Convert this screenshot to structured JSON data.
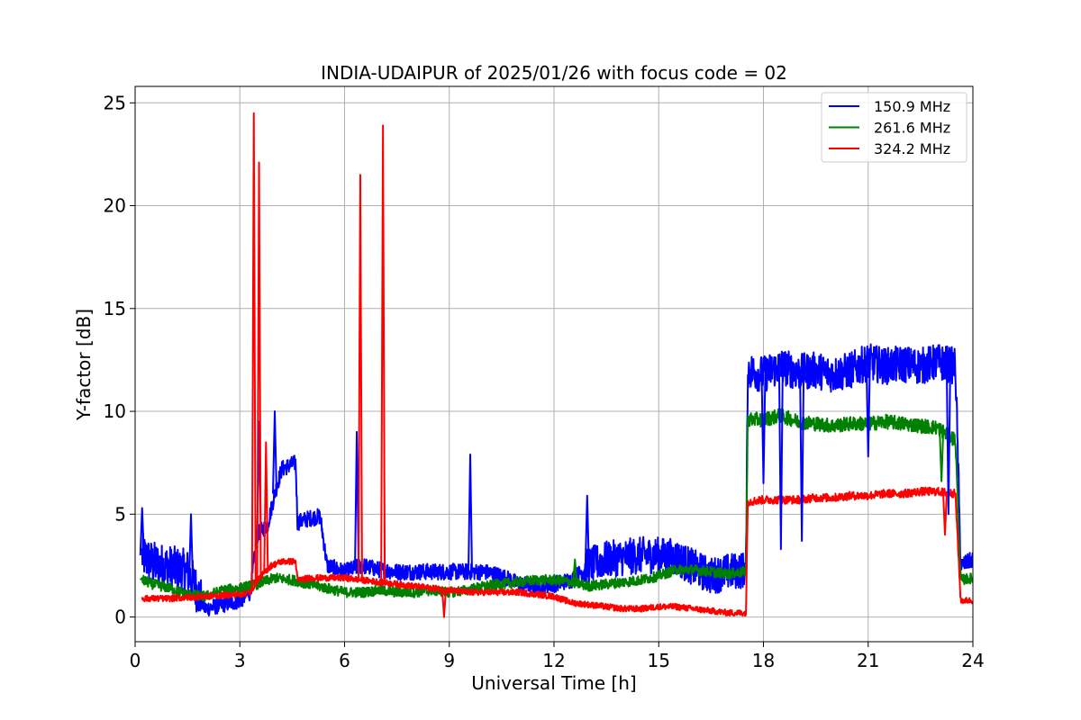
{
  "chart_data": {
    "type": "line",
    "title": "INDIA-UDAIPUR of 2025/01/26 with focus code = 02",
    "xlabel": "Universal Time [h]",
    "ylabel": "Y-factor [dB]",
    "xlim": [
      0,
      24
    ],
    "ylim": [
      -1.2,
      25.8
    ],
    "xticks": [
      0,
      3,
      6,
      9,
      12,
      15,
      18,
      21,
      24
    ],
    "yticks": [
      0,
      5,
      10,
      15,
      20,
      25
    ],
    "grid": true,
    "legend_position": "top-right",
    "series": [
      {
        "name": "150.9 MHz",
        "color": "#0000ff",
        "points": [
          [
            0.2,
            3.0
          ],
          [
            0.5,
            2.6
          ],
          [
            1.0,
            2.4
          ],
          [
            1.5,
            2.2
          ],
          [
            1.8,
            1.2
          ],
          [
            2.0,
            0.4
          ],
          [
            2.5,
            0.6
          ],
          [
            3.0,
            0.8
          ],
          [
            3.3,
            1.2
          ],
          [
            3.5,
            4.0
          ],
          [
            3.8,
            4.5
          ],
          [
            4.0,
            6.0
          ],
          [
            4.2,
            7.2
          ],
          [
            4.6,
            7.5
          ],
          [
            4.65,
            4.6
          ],
          [
            5.0,
            4.8
          ],
          [
            5.3,
            4.9
          ],
          [
            5.5,
            2.5
          ],
          [
            6.0,
            2.2
          ],
          [
            6.5,
            2.5
          ],
          [
            7.0,
            2.3
          ],
          [
            7.5,
            2.2
          ],
          [
            8.0,
            2.2
          ],
          [
            8.5,
            2.2
          ],
          [
            9.0,
            2.2
          ],
          [
            9.5,
            2.2
          ],
          [
            10.0,
            2.2
          ],
          [
            10.5,
            2.0
          ],
          [
            11.0,
            1.6
          ],
          [
            11.5,
            1.5
          ],
          [
            12.0,
            1.6
          ],
          [
            12.5,
            1.8
          ],
          [
            13.0,
            2.5
          ],
          [
            13.5,
            2.8
          ],
          [
            14.0,
            2.9
          ],
          [
            14.5,
            3.0
          ],
          [
            15.0,
            3.0
          ],
          [
            15.5,
            2.9
          ],
          [
            16.0,
            2.4
          ],
          [
            16.5,
            2.0
          ],
          [
            17.0,
            2.2
          ],
          [
            17.5,
            2.3
          ],
          [
            17.55,
            12.0
          ],
          [
            18.0,
            11.8
          ],
          [
            18.5,
            12.2
          ],
          [
            19.0,
            11.9
          ],
          [
            19.5,
            12.0
          ],
          [
            20.0,
            11.8
          ],
          [
            20.5,
            12.0
          ],
          [
            21.0,
            12.4
          ],
          [
            21.5,
            12.2
          ],
          [
            22.0,
            12.3
          ],
          [
            22.5,
            12.2
          ],
          [
            23.0,
            12.4
          ],
          [
            23.5,
            12.2
          ],
          [
            23.65,
            2.5
          ],
          [
            24.0,
            2.8
          ]
        ]
      },
      {
        "name": "261.6 MHz",
        "color": "#008000",
        "points": [
          [
            0.2,
            1.8
          ],
          [
            0.5,
            1.6
          ],
          [
            1.0,
            1.4
          ],
          [
            1.5,
            1.1
          ],
          [
            2.0,
            1.0
          ],
          [
            2.5,
            1.3
          ],
          [
            3.0,
            1.4
          ],
          [
            3.5,
            1.6
          ],
          [
            4.0,
            1.9
          ],
          [
            4.5,
            1.8
          ],
          [
            5.0,
            1.6
          ],
          [
            5.5,
            1.4
          ],
          [
            6.0,
            1.2
          ],
          [
            6.5,
            1.2
          ],
          [
            7.0,
            1.3
          ],
          [
            7.5,
            1.2
          ],
          [
            8.0,
            1.2
          ],
          [
            8.5,
            1.3
          ],
          [
            9.0,
            1.2
          ],
          [
            9.5,
            1.3
          ],
          [
            10.0,
            1.5
          ],
          [
            10.5,
            1.6
          ],
          [
            11.0,
            1.7
          ],
          [
            11.5,
            1.8
          ],
          [
            12.0,
            1.8
          ],
          [
            12.5,
            1.7
          ],
          [
            13.0,
            1.5
          ],
          [
            13.5,
            1.6
          ],
          [
            14.0,
            1.7
          ],
          [
            14.5,
            1.8
          ],
          [
            15.0,
            2.0
          ],
          [
            15.5,
            2.3
          ],
          [
            16.0,
            2.3
          ],
          [
            16.5,
            2.2
          ],
          [
            17.0,
            2.1
          ],
          [
            17.5,
            2.2
          ],
          [
            17.55,
            9.6
          ],
          [
            18.0,
            9.6
          ],
          [
            18.5,
            9.8
          ],
          [
            19.0,
            9.5
          ],
          [
            19.5,
            9.4
          ],
          [
            20.0,
            9.3
          ],
          [
            20.5,
            9.4
          ],
          [
            21.0,
            9.4
          ],
          [
            21.5,
            9.5
          ],
          [
            22.0,
            9.4
          ],
          [
            22.5,
            9.3
          ],
          [
            23.0,
            9.2
          ],
          [
            23.5,
            8.6
          ],
          [
            23.65,
            1.8
          ],
          [
            24.0,
            1.9
          ]
        ]
      },
      {
        "name": "324.2 MHz",
        "color": "#ff0000",
        "points": [
          [
            0.2,
            0.9
          ],
          [
            1.0,
            0.9
          ],
          [
            2.0,
            1.0
          ],
          [
            3.0,
            1.1
          ],
          [
            3.3,
            1.2
          ],
          [
            3.5,
            1.8
          ],
          [
            3.9,
            2.5
          ],
          [
            4.2,
            2.7
          ],
          [
            4.6,
            2.7
          ],
          [
            4.65,
            1.8
          ],
          [
            5.0,
            1.9
          ],
          [
            5.5,
            1.9
          ],
          [
            6.0,
            1.9
          ],
          [
            6.5,
            1.8
          ],
          [
            7.0,
            1.7
          ],
          [
            7.5,
            1.6
          ],
          [
            8.0,
            1.5
          ],
          [
            8.5,
            1.4
          ],
          [
            9.0,
            1.3
          ],
          [
            9.5,
            1.2
          ],
          [
            10.0,
            1.2
          ],
          [
            10.5,
            1.2
          ],
          [
            11.0,
            1.2
          ],
          [
            11.5,
            1.1
          ],
          [
            12.0,
            1.0
          ],
          [
            12.5,
            0.7
          ],
          [
            13.0,
            0.6
          ],
          [
            13.5,
            0.5
          ],
          [
            14.0,
            0.4
          ],
          [
            14.5,
            0.4
          ],
          [
            15.0,
            0.5
          ],
          [
            15.5,
            0.5
          ],
          [
            16.0,
            0.4
          ],
          [
            16.5,
            0.3
          ],
          [
            17.0,
            0.2
          ],
          [
            17.5,
            0.2
          ],
          [
            17.55,
            5.6
          ],
          [
            18.0,
            5.7
          ],
          [
            18.5,
            5.7
          ],
          [
            19.0,
            5.7
          ],
          [
            19.5,
            5.8
          ],
          [
            20.0,
            5.8
          ],
          [
            20.5,
            5.9
          ],
          [
            21.0,
            5.9
          ],
          [
            21.5,
            6.0
          ],
          [
            22.0,
            6.0
          ],
          [
            22.5,
            6.1
          ],
          [
            23.0,
            6.1
          ],
          [
            23.5,
            6.0
          ],
          [
            23.65,
            0.8
          ],
          [
            24.0,
            0.8
          ]
        ]
      }
    ],
    "spikes": [
      {
        "series": 2,
        "x": 3.4,
        "y": 24.5
      },
      {
        "series": 2,
        "x": 3.55,
        "y": 22.1
      },
      {
        "series": 2,
        "x": 3.75,
        "y": 8.5
      },
      {
        "series": 2,
        "x": 6.45,
        "y": 21.5
      },
      {
        "series": 2,
        "x": 7.1,
        "y": 23.9
      },
      {
        "series": 0,
        "x": 3.55,
        "y": 9.5
      },
      {
        "series": 0,
        "x": 4.0,
        "y": 10.0
      },
      {
        "series": 0,
        "x": 6.35,
        "y": 9.0
      },
      {
        "series": 0,
        "x": 9.6,
        "y": 7.9
      },
      {
        "series": 0,
        "x": 12.95,
        "y": 5.9
      },
      {
        "series": 0,
        "x": 1.6,
        "y": 5.0
      },
      {
        "series": 0,
        "x": 0.2,
        "y": 5.3
      },
      {
        "series": 1,
        "x": 0.2,
        "y": 1.9
      },
      {
        "series": 1,
        "x": 12.6,
        "y": 2.8
      }
    ],
    "dips": [
      {
        "series": 0,
        "x": 18.5,
        "y": 3.3
      },
      {
        "series": 0,
        "x": 19.1,
        "y": 3.7
      },
      {
        "series": 0,
        "x": 18.0,
        "y": 6.5
      },
      {
        "series": 0,
        "x": 21.0,
        "y": 7.8
      },
      {
        "series": 0,
        "x": 23.3,
        "y": 5.0
      },
      {
        "series": 2,
        "x": 8.85,
        "y": 0.0
      },
      {
        "series": 2,
        "x": 23.2,
        "y": 4.0
      },
      {
        "series": 1,
        "x": 23.1,
        "y": 6.6
      }
    ]
  }
}
